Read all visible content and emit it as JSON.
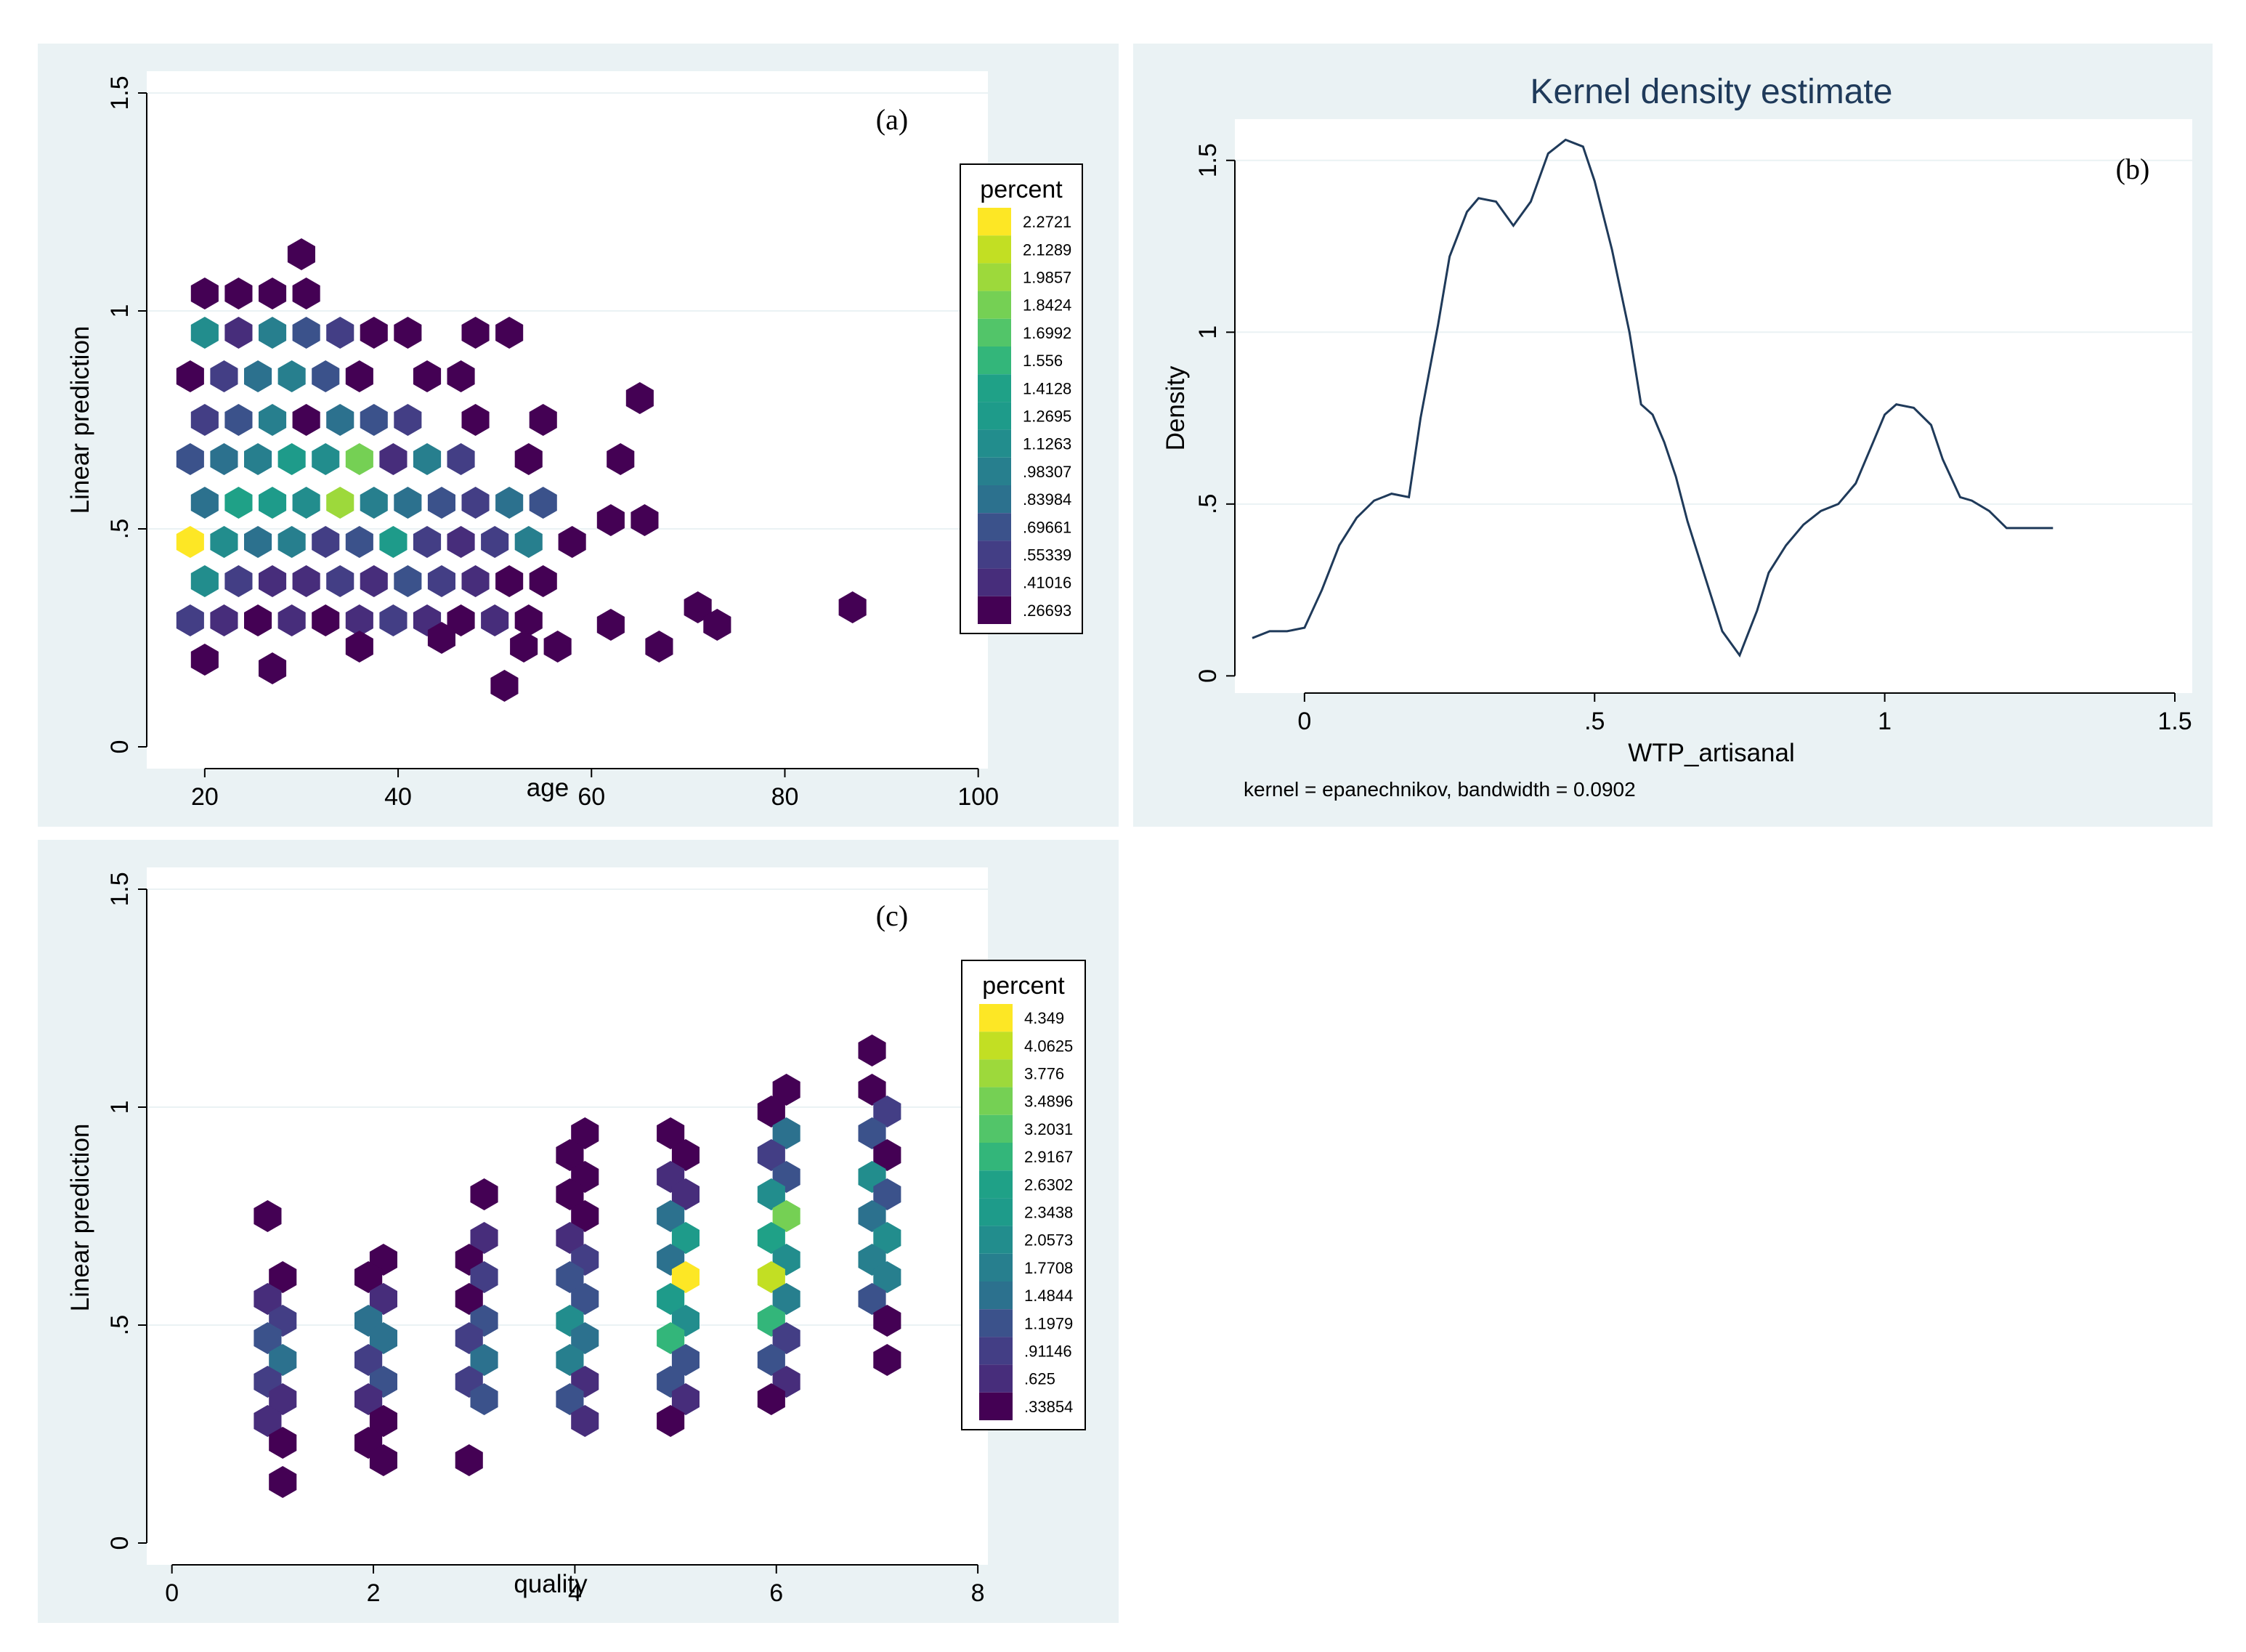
{
  "chart_data": [
    {
      "id": "a",
      "type": "heatmap",
      "subtype": "hexbin",
      "panel_label": "(a)",
      "xlabel": "age",
      "ylabel": "Linear prediction",
      "xlim": [
        14,
        101
      ],
      "ylim": [
        -0.05,
        1.55
      ],
      "xticks": [
        20,
        40,
        60,
        80,
        100
      ],
      "xtick_labels": [
        "20",
        "40",
        "60",
        "80",
        "100"
      ],
      "yticks": [
        0,
        0.5,
        1,
        1.5
      ],
      "ytick_labels": [
        "0",
        ".5",
        "1",
        "1.5"
      ],
      "legend": {
        "title": "percent",
        "labels": [
          "2.2721",
          "2.1289",
          "1.9857",
          "1.8424",
          "1.6992",
          "1.556",
          "1.4128",
          "1.2695",
          "1.1263",
          ".98307",
          ".83984",
          ".69661",
          ".55339",
          ".41016",
          ".26693"
        ],
        "colors": [
          "#fde725",
          "#c2df23",
          "#9dd93b",
          "#75d054",
          "#52c569",
          "#33b67a",
          "#1fa187",
          "#1e9b8a",
          "#228d8d",
          "#277f8e",
          "#2c718e",
          "#3b528b",
          "#433e85",
          "#472d7b",
          "#440154"
        ]
      },
      "cells": [
        [
          30,
          1.13,
          14
        ],
        [
          20,
          1.04,
          14
        ],
        [
          23.5,
          1.04,
          14
        ],
        [
          27,
          1.04,
          14
        ],
        [
          30.5,
          1.04,
          14
        ],
        [
          20,
          0.95,
          8
        ],
        [
          23.5,
          0.95,
          13
        ],
        [
          27,
          0.95,
          9
        ],
        [
          30.5,
          0.95,
          11
        ],
        [
          34,
          0.95,
          12
        ],
        [
          37.5,
          0.95,
          14
        ],
        [
          41,
          0.95,
          14
        ],
        [
          48,
          0.95,
          14
        ],
        [
          51.5,
          0.95,
          14
        ],
        [
          18.5,
          0.85,
          14
        ],
        [
          22,
          0.85,
          12
        ],
        [
          25.5,
          0.85,
          10
        ],
        [
          29,
          0.85,
          9
        ],
        [
          32.5,
          0.85,
          11
        ],
        [
          36,
          0.85,
          14
        ],
        [
          43,
          0.85,
          14
        ],
        [
          46.5,
          0.85,
          14
        ],
        [
          20,
          0.75,
          12
        ],
        [
          23.5,
          0.75,
          11
        ],
        [
          27,
          0.75,
          9
        ],
        [
          30.5,
          0.75,
          14
        ],
        [
          34,
          0.75,
          10
        ],
        [
          37.5,
          0.75,
          11
        ],
        [
          41,
          0.75,
          12
        ],
        [
          48,
          0.75,
          14
        ],
        [
          55,
          0.75,
          14
        ],
        [
          65,
          0.8,
          14
        ],
        [
          18.5,
          0.66,
          11
        ],
        [
          22,
          0.66,
          10
        ],
        [
          25.5,
          0.66,
          9
        ],
        [
          29,
          0.66,
          7
        ],
        [
          32.5,
          0.66,
          8
        ],
        [
          36,
          0.66,
          3
        ],
        [
          39.5,
          0.66,
          13
        ],
        [
          43,
          0.66,
          9
        ],
        [
          46.5,
          0.66,
          12
        ],
        [
          53.5,
          0.66,
          14
        ],
        [
          63,
          0.66,
          14
        ],
        [
          20,
          0.56,
          10
        ],
        [
          23.5,
          0.56,
          6
        ],
        [
          27,
          0.56,
          7
        ],
        [
          30.5,
          0.56,
          8
        ],
        [
          34,
          0.56,
          2
        ],
        [
          37.5,
          0.56,
          9
        ],
        [
          41,
          0.56,
          10
        ],
        [
          44.5,
          0.56,
          11
        ],
        [
          48,
          0.56,
          12
        ],
        [
          51.5,
          0.56,
          10
        ],
        [
          55,
          0.56,
          11
        ],
        [
          18.5,
          0.47,
          0
        ],
        [
          22,
          0.47,
          8
        ],
        [
          25.5,
          0.47,
          10
        ],
        [
          29,
          0.47,
          9
        ],
        [
          32.5,
          0.47,
          12
        ],
        [
          36,
          0.47,
          11
        ],
        [
          39.5,
          0.47,
          7
        ],
        [
          43,
          0.47,
          12
        ],
        [
          46.5,
          0.47,
          13
        ],
        [
          50,
          0.47,
          12
        ],
        [
          53.5,
          0.47,
          9
        ],
        [
          58,
          0.47,
          14
        ],
        [
          62,
          0.52,
          14
        ],
        [
          65.5,
          0.52,
          14
        ],
        [
          20,
          0.38,
          8
        ],
        [
          23.5,
          0.38,
          12
        ],
        [
          27,
          0.38,
          13
        ],
        [
          30.5,
          0.38,
          13
        ],
        [
          34,
          0.38,
          12
        ],
        [
          37.5,
          0.38,
          13
        ],
        [
          41,
          0.38,
          11
        ],
        [
          44.5,
          0.38,
          12
        ],
        [
          48,
          0.38,
          13
        ],
        [
          51.5,
          0.38,
          14
        ],
        [
          55,
          0.38,
          14
        ],
        [
          18.5,
          0.29,
          12
        ],
        [
          22,
          0.29,
          13
        ],
        [
          25.5,
          0.29,
          14
        ],
        [
          29,
          0.29,
          13
        ],
        [
          32.5,
          0.29,
          14
        ],
        [
          36,
          0.29,
          13
        ],
        [
          39.5,
          0.29,
          12
        ],
        [
          43,
          0.29,
          13
        ],
        [
          46.5,
          0.29,
          14
        ],
        [
          50,
          0.29,
          13
        ],
        [
          53.5,
          0.29,
          14
        ],
        [
          71,
          0.32,
          14
        ],
        [
          73,
          0.28,
          14
        ],
        [
          87,
          0.32,
          14
        ],
        [
          20,
          0.2,
          14
        ],
        [
          27,
          0.18,
          14
        ],
        [
          36,
          0.23,
          14
        ],
        [
          44.5,
          0.25,
          14
        ],
        [
          53,
          0.23,
          14
        ],
        [
          56.5,
          0.23,
          14
        ],
        [
          62,
          0.28,
          14
        ],
        [
          67,
          0.23,
          14
        ],
        [
          51,
          0.14,
          14
        ]
      ]
    },
    {
      "id": "b",
      "type": "line",
      "title": "Kernel density estimate",
      "panel_label": "(b)",
      "xlabel": "WTP_artisanal",
      "ylabel": "Density",
      "note": "kernel = epanechnikov, bandwidth = 0.0902",
      "xlim": [
        -0.12,
        1.53
      ],
      "ylim": [
        -0.05,
        1.62
      ],
      "xticks": [
        0,
        0.5,
        1,
        1.5
      ],
      "xtick_labels": [
        "0",
        ".5",
        "1",
        "1.5"
      ],
      "yticks": [
        0,
        0.5,
        1,
        1.5
      ],
      "ytick_labels": [
        "0",
        ".5",
        "1",
        "1.5"
      ],
      "x": [
        -0.09,
        -0.06,
        -0.03,
        0.0,
        0.03,
        0.06,
        0.09,
        0.12,
        0.15,
        0.18,
        0.2,
        0.23,
        0.25,
        0.28,
        0.3,
        0.33,
        0.36,
        0.39,
        0.42,
        0.45,
        0.48,
        0.5,
        0.53,
        0.56,
        0.58,
        0.6,
        0.62,
        0.64,
        0.66,
        0.69,
        0.72,
        0.75,
        0.78,
        0.8,
        0.83,
        0.86,
        0.89,
        0.92,
        0.95,
        0.98,
        1.0,
        1.02,
        1.05,
        1.08,
        1.1,
        1.13,
        1.15,
        1.18,
        1.21,
        1.24,
        1.27,
        1.29
      ],
      "y": [
        0.11,
        0.13,
        0.13,
        0.14,
        0.25,
        0.38,
        0.46,
        0.51,
        0.53,
        0.52,
        0.75,
        1.02,
        1.22,
        1.35,
        1.39,
        1.38,
        1.31,
        1.38,
        1.52,
        1.56,
        1.54,
        1.44,
        1.24,
        1.0,
        0.79,
        0.76,
        0.68,
        0.58,
        0.45,
        0.29,
        0.13,
        0.06,
        0.19,
        0.3,
        0.38,
        0.44,
        0.48,
        0.5,
        0.56,
        0.68,
        0.76,
        0.79,
        0.78,
        0.73,
        0.63,
        0.52,
        0.51,
        0.48,
        0.43,
        0.43,
        0.43,
        0.43
      ]
    },
    {
      "id": "c",
      "type": "heatmap",
      "subtype": "hexbin",
      "panel_label": "(c)",
      "xlabel": "quality",
      "ylabel": "Linear prediction",
      "xlim": [
        -0.25,
        8.1
      ],
      "ylim": [
        -0.05,
        1.55
      ],
      "xticks": [
        0,
        2,
        4,
        6,
        8
      ],
      "xtick_labels": [
        "0",
        "2",
        "4",
        "6",
        "8"
      ],
      "yticks": [
        0,
        0.5,
        1,
        1.5
      ],
      "ytick_labels": [
        "0",
        ".5",
        "1",
        "1.5"
      ],
      "legend": {
        "title": "percent",
        "labels": [
          "4.349",
          "4.0625",
          "3.776",
          "3.4896",
          "3.2031",
          "2.9167",
          "2.6302",
          "2.3438",
          "2.0573",
          "1.7708",
          "1.4844",
          "1.1979",
          ".91146",
          ".625",
          ".33854"
        ],
        "colors": [
          "#fde725",
          "#c2df23",
          "#9dd93b",
          "#75d054",
          "#52c569",
          "#33b67a",
          "#1fa187",
          "#1e9b8a",
          "#228d8d",
          "#277f8e",
          "#2c718e",
          "#3b528b",
          "#433e85",
          "#472d7b",
          "#440154"
        ]
      },
      "cells": [
        [
          0.95,
          0.75,
          14
        ],
        [
          1.1,
          0.61,
          14
        ],
        [
          0.95,
          0.56,
          13
        ],
        [
          1.1,
          0.51,
          12
        ],
        [
          0.95,
          0.47,
          11
        ],
        [
          1.1,
          0.42,
          10
        ],
        [
          0.95,
          0.37,
          12
        ],
        [
          1.1,
          0.33,
          13
        ],
        [
          0.95,
          0.28,
          13
        ],
        [
          1.1,
          0.23,
          14
        ],
        [
          1.1,
          0.14,
          14
        ],
        [
          2.1,
          0.65,
          14
        ],
        [
          1.95,
          0.61,
          14
        ],
        [
          2.1,
          0.56,
          13
        ],
        [
          1.95,
          0.51,
          10
        ],
        [
          2.1,
          0.47,
          10
        ],
        [
          1.95,
          0.42,
          12
        ],
        [
          2.1,
          0.37,
          11
        ],
        [
          1.95,
          0.33,
          13
        ],
        [
          2.1,
          0.28,
          14
        ],
        [
          1.95,
          0.23,
          14
        ],
        [
          2.1,
          0.19,
          14
        ],
        [
          3.1,
          0.8,
          14
        ],
        [
          3.1,
          0.7,
          13
        ],
        [
          2.95,
          0.65,
          14
        ],
        [
          3.1,
          0.61,
          12
        ],
        [
          2.95,
          0.56,
          14
        ],
        [
          3.1,
          0.51,
          11
        ],
        [
          2.95,
          0.47,
          12
        ],
        [
          3.1,
          0.42,
          10
        ],
        [
          2.95,
          0.37,
          12
        ],
        [
          3.1,
          0.33,
          11
        ],
        [
          2.95,
          0.19,
          14
        ],
        [
          4.1,
          0.94,
          14
        ],
        [
          3.95,
          0.89,
          14
        ],
        [
          4.1,
          0.84,
          14
        ],
        [
          3.95,
          0.8,
          14
        ],
        [
          4.1,
          0.75,
          14
        ],
        [
          3.95,
          0.7,
          13
        ],
        [
          4.1,
          0.65,
          12
        ],
        [
          3.95,
          0.61,
          11
        ],
        [
          4.1,
          0.56,
          11
        ],
        [
          3.95,
          0.51,
          8
        ],
        [
          4.1,
          0.47,
          10
        ],
        [
          3.95,
          0.42,
          9
        ],
        [
          4.1,
          0.37,
          13
        ],
        [
          3.95,
          0.33,
          11
        ],
        [
          4.1,
          0.28,
          13
        ],
        [
          4.95,
          0.94,
          14
        ],
        [
          5.1,
          0.89,
          14
        ],
        [
          4.95,
          0.84,
          13
        ],
        [
          5.1,
          0.8,
          13
        ],
        [
          4.95,
          0.75,
          10
        ],
        [
          5.1,
          0.7,
          7
        ],
        [
          4.95,
          0.65,
          10
        ],
        [
          5.1,
          0.61,
          0
        ],
        [
          4.95,
          0.56,
          7
        ],
        [
          5.1,
          0.51,
          8
        ],
        [
          4.95,
          0.47,
          5
        ],
        [
          5.1,
          0.42,
          11
        ],
        [
          4.95,
          0.37,
          11
        ],
        [
          5.1,
          0.33,
          13
        ],
        [
          4.95,
          0.28,
          14
        ],
        [
          6.1,
          1.04,
          14
        ],
        [
          5.95,
          0.99,
          14
        ],
        [
          6.1,
          0.94,
          10
        ],
        [
          5.95,
          0.89,
          12
        ],
        [
          6.1,
          0.84,
          11
        ],
        [
          5.95,
          0.8,
          8
        ],
        [
          6.1,
          0.75,
          3
        ],
        [
          5.95,
          0.7,
          6
        ],
        [
          6.1,
          0.65,
          8
        ],
        [
          5.95,
          0.61,
          1
        ],
        [
          6.1,
          0.56,
          9
        ],
        [
          5.95,
          0.51,
          5
        ],
        [
          6.1,
          0.47,
          12
        ],
        [
          5.95,
          0.42,
          11
        ],
        [
          6.1,
          0.37,
          13
        ],
        [
          5.95,
          0.33,
          14
        ],
        [
          6.95,
          1.13,
          14
        ],
        [
          6.95,
          1.04,
          14
        ],
        [
          7.1,
          0.99,
          12
        ],
        [
          6.95,
          0.94,
          11
        ],
        [
          7.1,
          0.89,
          14
        ],
        [
          6.95,
          0.84,
          8
        ],
        [
          7.1,
          0.8,
          11
        ],
        [
          6.95,
          0.75,
          10
        ],
        [
          7.1,
          0.7,
          8
        ],
        [
          6.95,
          0.65,
          9
        ],
        [
          7.1,
          0.61,
          9
        ],
        [
          6.95,
          0.56,
          11
        ],
        [
          7.1,
          0.51,
          14
        ],
        [
          7.1,
          0.42,
          14
        ]
      ]
    }
  ]
}
